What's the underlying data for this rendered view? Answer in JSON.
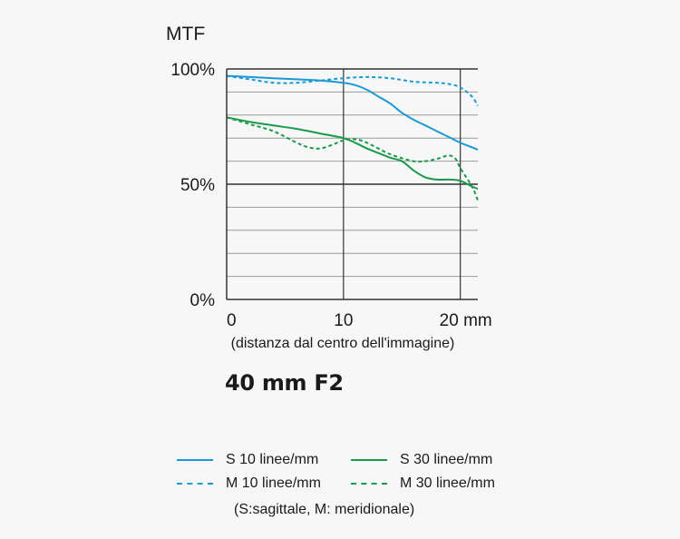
{
  "chart_data": {
    "type": "line",
    "title": "MTF",
    "xlabel": "(distanza dal centro dell'immagine)",
    "ylabel": "",
    "xlim": [
      0,
      21.5
    ],
    "ylim": [
      0,
      100
    ],
    "x_ticks": [
      {
        "value": 0,
        "label": "0"
      },
      {
        "value": 10,
        "label": "10"
      },
      {
        "value": 20,
        "label": "20 mm"
      }
    ],
    "y_ticks": [
      {
        "value": 0,
        "label": "0%"
      },
      {
        "value": 50,
        "label": "50%"
      },
      {
        "value": 100,
        "label": "100%"
      }
    ],
    "grid": true,
    "grid_step": 10,
    "series": [
      {
        "name": "S 10 linee/mm",
        "style": "solid",
        "color": "#1a9ad6",
        "x": [
          0,
          2,
          4,
          6,
          8,
          10,
          11,
          12,
          13,
          14,
          15,
          16,
          17,
          18,
          19,
          20,
          21,
          21.5
        ],
        "y": [
          97,
          96.5,
          96,
          95.5,
          95,
          94,
          93,
          91,
          88,
          85,
          81,
          78,
          75.5,
          73,
          70.5,
          68,
          66,
          65
        ]
      },
      {
        "name": "M 10 linee/mm",
        "style": "dashed",
        "color": "#1a9ad6",
        "x": [
          0,
          2,
          4,
          6,
          8,
          10,
          12,
          14,
          16,
          18,
          19,
          20,
          21,
          21.5
        ],
        "y": [
          97,
          95.5,
          94,
          94,
          95,
          96,
          96.5,
          96,
          94.5,
          94,
          93.5,
          92,
          88,
          84
        ]
      },
      {
        "name": "S 30 linee/mm",
        "style": "solid",
        "color": "#1a9a4a",
        "x": [
          0,
          2,
          4,
          6,
          8,
          10,
          11,
          12,
          13,
          14,
          15,
          16,
          17,
          18,
          19,
          20,
          21,
          21.5
        ],
        "y": [
          79,
          77,
          75.5,
          74,
          72,
          70,
          68,
          65.5,
          63.5,
          61.5,
          60,
          56,
          53,
          52,
          52,
          51.5,
          49,
          48
        ]
      },
      {
        "name": "M 30 linee/mm",
        "style": "dashed",
        "color": "#1a9a4a",
        "x": [
          0,
          2,
          4,
          6,
          7,
          8,
          9,
          10,
          11,
          12,
          14,
          16,
          17,
          18,
          19,
          19.6,
          20,
          21,
          21.5
        ],
        "y": [
          79,
          76,
          73,
          68,
          66,
          65.5,
          67,
          69,
          69.5,
          68,
          63,
          60,
          60,
          61,
          62.5,
          61,
          57,
          49,
          43
        ]
      }
    ]
  },
  "product_title": "40 mm F2",
  "legend": {
    "items": [
      "S 10 linee/mm",
      "S 30 linee/mm",
      "M 10 linee/mm",
      "M 30 linee/mm"
    ],
    "note": "(S:sagittale, M: meridionale)"
  }
}
